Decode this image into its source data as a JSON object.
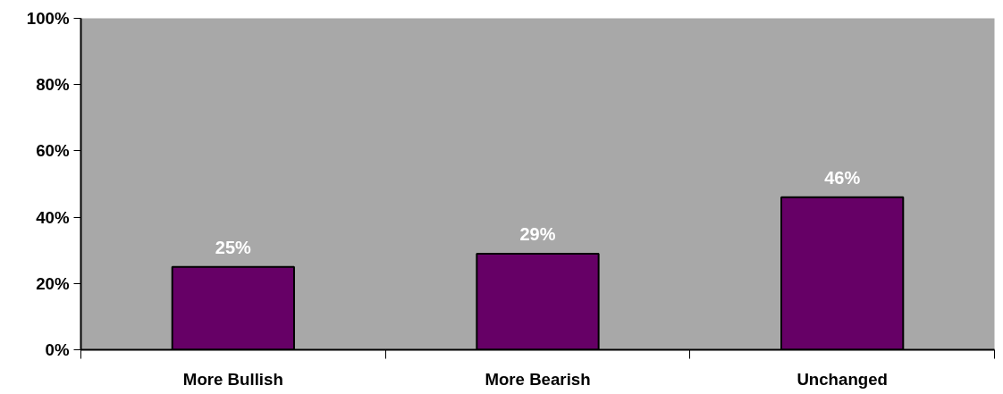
{
  "chart_data": {
    "type": "bar",
    "categories": [
      "More Bullish",
      "More Bearish",
      "Unchanged"
    ],
    "values": [
      25,
      29,
      46
    ],
    "color": "#660066",
    "data_labels": true,
    "value_labels": [
      "25%",
      "29%",
      "46%"
    ],
    "ylim": [
      0,
      100
    ],
    "yticks": [
      {
        "value": 0,
        "label": "0%"
      },
      {
        "value": 20,
        "label": "20%"
      },
      {
        "value": 40,
        "label": "40%"
      },
      {
        "value": 60,
        "label": "60%"
      },
      {
        "value": 80,
        "label": "80%"
      },
      {
        "value": 100,
        "label": "100%"
      }
    ],
    "grid": false
  }
}
